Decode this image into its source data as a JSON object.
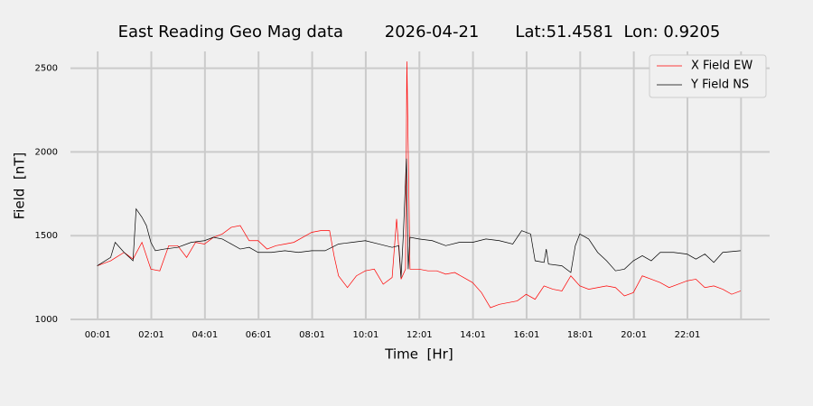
{
  "chart_data": {
    "type": "line",
    "title": "East Reading Geo Mag data        2026-04-21       Lat:51.4581  Lon: 0.9205",
    "x_label": "Time  [Hr]",
    "y_label": "Field  [nT]",
    "xlim": [
      -60,
      1505
    ],
    "ylim": [
      1000,
      2600
    ],
    "xticks": [
      {
        "value": 1,
        "label": "00:01"
      },
      {
        "value": 121,
        "label": "02:01"
      },
      {
        "value": 241,
        "label": "04:01"
      },
      {
        "value": 361,
        "label": "06:01"
      },
      {
        "value": 481,
        "label": "08:01"
      },
      {
        "value": 601,
        "label": "10:01"
      },
      {
        "value": 721,
        "label": "12:01"
      },
      {
        "value": 841,
        "label": "14:01"
      },
      {
        "value": 961,
        "label": "16:01"
      },
      {
        "value": 1081,
        "label": "18:01"
      },
      {
        "value": 1201,
        "label": "20:01"
      },
      {
        "value": 1321,
        "label": "22:01"
      },
      {
        "value": 1441,
        "label": null
      }
    ],
    "yticks": [
      1000,
      1500,
      2000,
      2500
    ],
    "grid": true,
    "legend": "upper right",
    "series": [
      {
        "name": "X Field EW",
        "color": "#ff0000",
        "x": [
          0,
          30,
          60,
          80,
          100,
          120,
          140,
          160,
          180,
          200,
          220,
          240,
          260,
          280,
          300,
          320,
          340,
          360,
          380,
          400,
          420,
          440,
          460,
          480,
          500,
          520,
          530,
          540,
          560,
          580,
          600,
          620,
          640,
          660,
          670,
          680,
          690,
          693,
          700,
          720,
          740,
          760,
          780,
          800,
          820,
          840,
          860,
          880,
          900,
          920,
          940,
          960,
          980,
          1000,
          1020,
          1040,
          1060,
          1080,
          1100,
          1120,
          1140,
          1160,
          1180,
          1200,
          1220,
          1240,
          1260,
          1280,
          1300,
          1320,
          1340,
          1360,
          1380,
          1400,
          1420,
          1440
        ],
        "values": [
          1320,
          1350,
          1400,
          1360,
          1460,
          1300,
          1290,
          1440,
          1440,
          1370,
          1460,
          1450,
          1490,
          1510,
          1550,
          1560,
          1470,
          1470,
          1420,
          1440,
          1450,
          1460,
          1490,
          1520,
          1530,
          1530,
          1380,
          1260,
          1190,
          1260,
          1290,
          1300,
          1210,
          1250,
          1600,
          1240,
          1300,
          2540,
          1300,
          1300,
          1290,
          1290,
          1270,
          1280,
          1250,
          1220,
          1160,
          1070,
          1090,
          1100,
          1110,
          1150,
          1120,
          1200,
          1180,
          1170,
          1260,
          1200,
          1180,
          1190,
          1200,
          1190,
          1140,
          1160,
          1260,
          1240,
          1220,
          1190,
          1210,
          1230,
          1240,
          1190,
          1200,
          1180,
          1150,
          1170
        ]
      },
      {
        "name": "Y Field NS",
        "color": "#000000",
        "x": [
          0,
          30,
          40,
          60,
          80,
          87,
          100,
          110,
          120,
          130,
          150,
          180,
          210,
          240,
          260,
          280,
          300,
          320,
          340,
          360,
          390,
          420,
          450,
          480,
          510,
          540,
          570,
          600,
          630,
          660,
          675,
          680,
          685,
          692,
          696,
          700,
          720,
          750,
          780,
          810,
          840,
          870,
          900,
          930,
          950,
          970,
          980,
          1000,
          1005,
          1010,
          1040,
          1060,
          1070,
          1080,
          1100,
          1120,
          1140,
          1160,
          1180,
          1200,
          1220,
          1240,
          1260,
          1290,
          1320,
          1340,
          1360,
          1380,
          1400,
          1440
        ],
        "values": [
          1320,
          1370,
          1460,
          1400,
          1350,
          1660,
          1610,
          1560,
          1460,
          1410,
          1420,
          1430,
          1460,
          1470,
          1490,
          1480,
          1450,
          1420,
          1430,
          1400,
          1400,
          1410,
          1400,
          1410,
          1410,
          1450,
          1460,
          1470,
          1450,
          1430,
          1440,
          1250,
          1500,
          1960,
          1300,
          1490,
          1480,
          1470,
          1440,
          1460,
          1460,
          1480,
          1470,
          1450,
          1530,
          1510,
          1350,
          1340,
          1420,
          1330,
          1320,
          1280,
          1440,
          1510,
          1480,
          1400,
          1350,
          1290,
          1300,
          1350,
          1380,
          1350,
          1400,
          1400,
          1390,
          1360,
          1390,
          1340,
          1400,
          1410
        ]
      }
    ]
  }
}
